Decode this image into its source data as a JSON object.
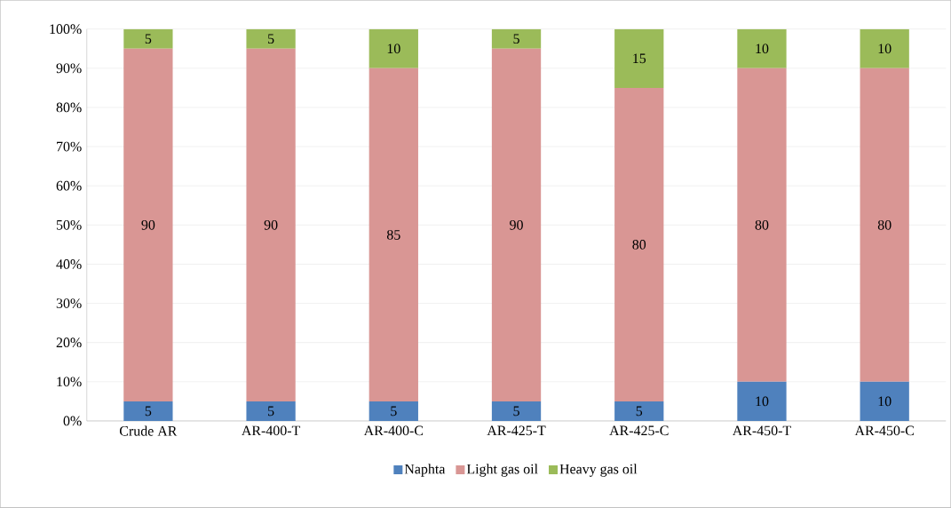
{
  "chart_data": {
    "type": "bar",
    "stacked": true,
    "categories": [
      "Crude AR",
      "AR-400-T",
      "AR-400-C",
      "AR-425-T",
      "AR-425-C",
      "AR-450-T",
      "AR-450-C"
    ],
    "series": [
      {
        "name": "Naphta",
        "color": "#4f81bd",
        "values": [
          5,
          5,
          5,
          5,
          5,
          10,
          10
        ]
      },
      {
        "name": "Light gas oil",
        "color": "#d99694",
        "values": [
          90,
          90,
          85,
          90,
          80,
          80,
          80
        ]
      },
      {
        "name": "Heavy gas oil",
        "color": "#9bbb59",
        "values": [
          5,
          5,
          10,
          5,
          15,
          10,
          10
        ]
      }
    ],
    "ylim": [
      0,
      100
    ],
    "yticks": [
      {
        "value": 0,
        "label": "0%"
      },
      {
        "value": 10,
        "label": "10%"
      },
      {
        "value": 20,
        "label": "20%"
      },
      {
        "value": 30,
        "label": "30%"
      },
      {
        "value": 40,
        "label": "40%"
      },
      {
        "value": 50,
        "label": "50%"
      },
      {
        "value": 60,
        "label": "60%"
      },
      {
        "value": 70,
        "label": "70%"
      },
      {
        "value": 80,
        "label": "80%"
      },
      {
        "value": 90,
        "label": "90%"
      },
      {
        "value": 100,
        "label": "100%"
      }
    ],
    "grid": "y",
    "legend": "bottom",
    "data_labels": true
  }
}
